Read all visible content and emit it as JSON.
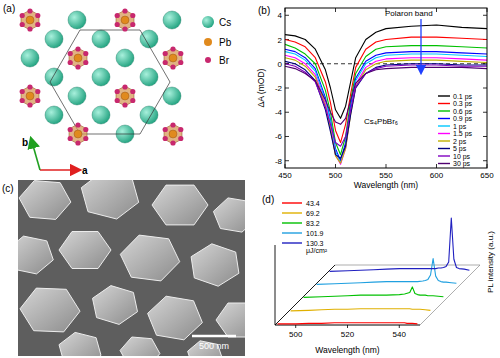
{
  "panels": {
    "a": {
      "title": "(a)",
      "legend": [
        "Cs",
        "Pb",
        "Br"
      ],
      "axis_labels": [
        "a",
        "b"
      ]
    },
    "c": {
      "title": "(c)",
      "scale_bar": "500 nm"
    }
  },
  "chart_data": [
    {
      "type": "line",
      "title": "(b)",
      "xlabel": "Wavelength (nm)",
      "ylabel": "ΔA (mOD)",
      "x": [
        450,
        460,
        470,
        480,
        490,
        495,
        500,
        505,
        510,
        515,
        520,
        530,
        540,
        550,
        575,
        600,
        625,
        650
      ],
      "series": [
        {
          "name": "0.1 ps",
          "color": "#000000",
          "values": [
            2.4,
            2.3,
            2.0,
            1.2,
            -0.5,
            -2,
            -3.8,
            -4.5,
            -3.5,
            -1.5,
            0.5,
            2.0,
            2.6,
            2.9,
            3.1,
            3.2,
            3.0,
            2.9
          ]
        },
        {
          "name": "0.3 ps",
          "color": "#ff0000",
          "values": [
            2.0,
            1.8,
            1.4,
            0.5,
            -1.5,
            -3.2,
            -5.5,
            -6.5,
            -5.0,
            -2.5,
            -0.3,
            1.2,
            1.8,
            2.0,
            2.2,
            2.2,
            2.1,
            2.0
          ]
        },
        {
          "name": "0.6 ps",
          "color": "#00c000",
          "values": [
            1.6,
            1.3,
            0.8,
            0,
            -2.2,
            -4,
            -6.5,
            -7.5,
            -6,
            -3,
            -0.8,
            0.6,
            1.2,
            1.4,
            1.5,
            1.5,
            1.4,
            1.3
          ]
        },
        {
          "name": "0.9 ps",
          "color": "#0000ff",
          "values": [
            1.2,
            1.0,
            0.5,
            -0.4,
            -2.8,
            -4.6,
            -7,
            -8,
            -6.5,
            -3.5,
            -1.2,
            0.2,
            0.7,
            0.9,
            1.0,
            1.0,
            0.9,
            0.8
          ]
        },
        {
          "name": "1 ps",
          "color": "#00c8ff",
          "values": [
            1.0,
            0.8,
            0.3,
            -0.6,
            -3,
            -4.8,
            -7.2,
            -8.2,
            -6.8,
            -3.8,
            -1.4,
            0,
            0.5,
            0.7,
            0.8,
            0.8,
            0.7,
            0.6
          ]
        },
        {
          "name": "1.5 ps",
          "color": "#ff00ff",
          "values": [
            0.7,
            0.5,
            0,
            -0.9,
            -3.3,
            -5.2,
            -7.5,
            -8.3,
            -7,
            -4,
            -1.7,
            -0.3,
            0.2,
            0.4,
            0.5,
            0.5,
            0.4,
            0.3
          ]
        },
        {
          "name": "2 ps",
          "color": "#c0b000",
          "values": [
            0.5,
            0.3,
            -0.2,
            -1.1,
            -3.5,
            -5.4,
            -7.6,
            -8.2,
            -7,
            -4.2,
            -1.9,
            -0.5,
            0,
            0.2,
            0.3,
            0.3,
            0.2,
            0.1
          ]
        },
        {
          "name": "5 ps",
          "color": "#000080",
          "values": [
            0.2,
            0,
            -0.5,
            -1.4,
            -3.8,
            -5.6,
            -7.5,
            -7.8,
            -6.8,
            -4.2,
            -2,
            -0.8,
            -0.3,
            -0.1,
            0,
            0,
            -0.1,
            -0.1
          ]
        },
        {
          "name": "10 ps",
          "color": "#8000c0",
          "values": [
            0,
            -0.2,
            -0.7,
            -1.5,
            -3.6,
            -5,
            -6.5,
            -6.8,
            -6,
            -3.8,
            -1.9,
            -0.8,
            -0.4,
            -0.2,
            -0.1,
            -0.1,
            -0.2,
            -0.2
          ]
        },
        {
          "name": "30 ps",
          "color": "#500070",
          "values": [
            -0.2,
            -0.4,
            -0.8,
            -1.4,
            -3,
            -4,
            -4.8,
            -5,
            -4.5,
            -3,
            -1.6,
            -0.8,
            -0.5,
            -0.4,
            -0.3,
            -0.3,
            -0.3,
            -0.4
          ]
        }
      ],
      "xlim": [
        450,
        650
      ],
      "ylim": [
        -8.6,
        4.6
      ],
      "xticks": [
        450,
        500,
        550,
        600,
        650
      ],
      "yticks": [
        -8,
        -6,
        -4,
        -2,
        0,
        2,
        4
      ],
      "legend": "right",
      "annotations": [
        "Polaron band",
        "Cs₄PbBr₆"
      ]
    },
    {
      "type": "waterfall",
      "title": "(d)",
      "xlabel": "Wavelength (nm)",
      "ylabel": "PL intensity (a.u.)",
      "x": [
        493,
        500,
        505,
        510,
        515,
        520,
        525,
        530,
        532,
        534,
        535,
        536,
        537,
        538,
        539,
        540,
        541,
        542,
        543,
        545,
        547
      ],
      "series": [
        {
          "name": "43.4",
          "color": "#ff0000",
          "values": [
            0.02,
            0.02,
            0.03,
            0.03,
            0.04,
            0.04,
            0.04,
            0.04,
            0.04,
            0.04,
            0.04,
            0.04,
            0.04,
            0.04,
            0.04,
            0.04,
            0.04,
            0.04,
            0.03,
            0.03,
            0.02
          ]
        },
        {
          "name": "69.2",
          "color": "#e0b000",
          "values": [
            0.02,
            0.03,
            0.04,
            0.05,
            0.05,
            0.06,
            0.06,
            0.06,
            0.06,
            0.06,
            0.06,
            0.06,
            0.06,
            0.06,
            0.06,
            0.05,
            0.05,
            0.05,
            0.05,
            0.04,
            0.03
          ]
        },
        {
          "name": "83.2",
          "color": "#00c000",
          "values": [
            0.03,
            0.04,
            0.05,
            0.06,
            0.07,
            0.07,
            0.07,
            0.08,
            0.09,
            0.12,
            0.22,
            0.1,
            0.08,
            0.07,
            0.07,
            0.07,
            0.06,
            0.06,
            0.06,
            0.05,
            0.04
          ]
        },
        {
          "name": "101.9",
          "color": "#20a0e0",
          "values": [
            0.03,
            0.04,
            0.05,
            0.06,
            0.07,
            0.08,
            0.08,
            0.08,
            0.08,
            0.09,
            0.1,
            0.12,
            0.2,
            0.5,
            0.18,
            0.1,
            0.08,
            0.07,
            0.07,
            0.06,
            0.05
          ]
        },
        {
          "name": "130.3",
          "color": "#2020c0",
          "values": [
            0.03,
            0.04,
            0.05,
            0.06,
            0.07,
            0.08,
            0.08,
            0.08,
            0.08,
            0.08,
            0.09,
            0.09,
            0.1,
            0.12,
            0.2,
            1.0,
            0.25,
            0.1,
            0.08,
            0.07,
            0.05
          ]
        }
      ],
      "legend_title": "μJ/cm²",
      "xlim": [
        492,
        548
      ],
      "ylim": [
        0,
        1
      ],
      "xticks": [
        500,
        520,
        540
      ],
      "tick_labels": "x",
      "legend": "left"
    }
  ]
}
